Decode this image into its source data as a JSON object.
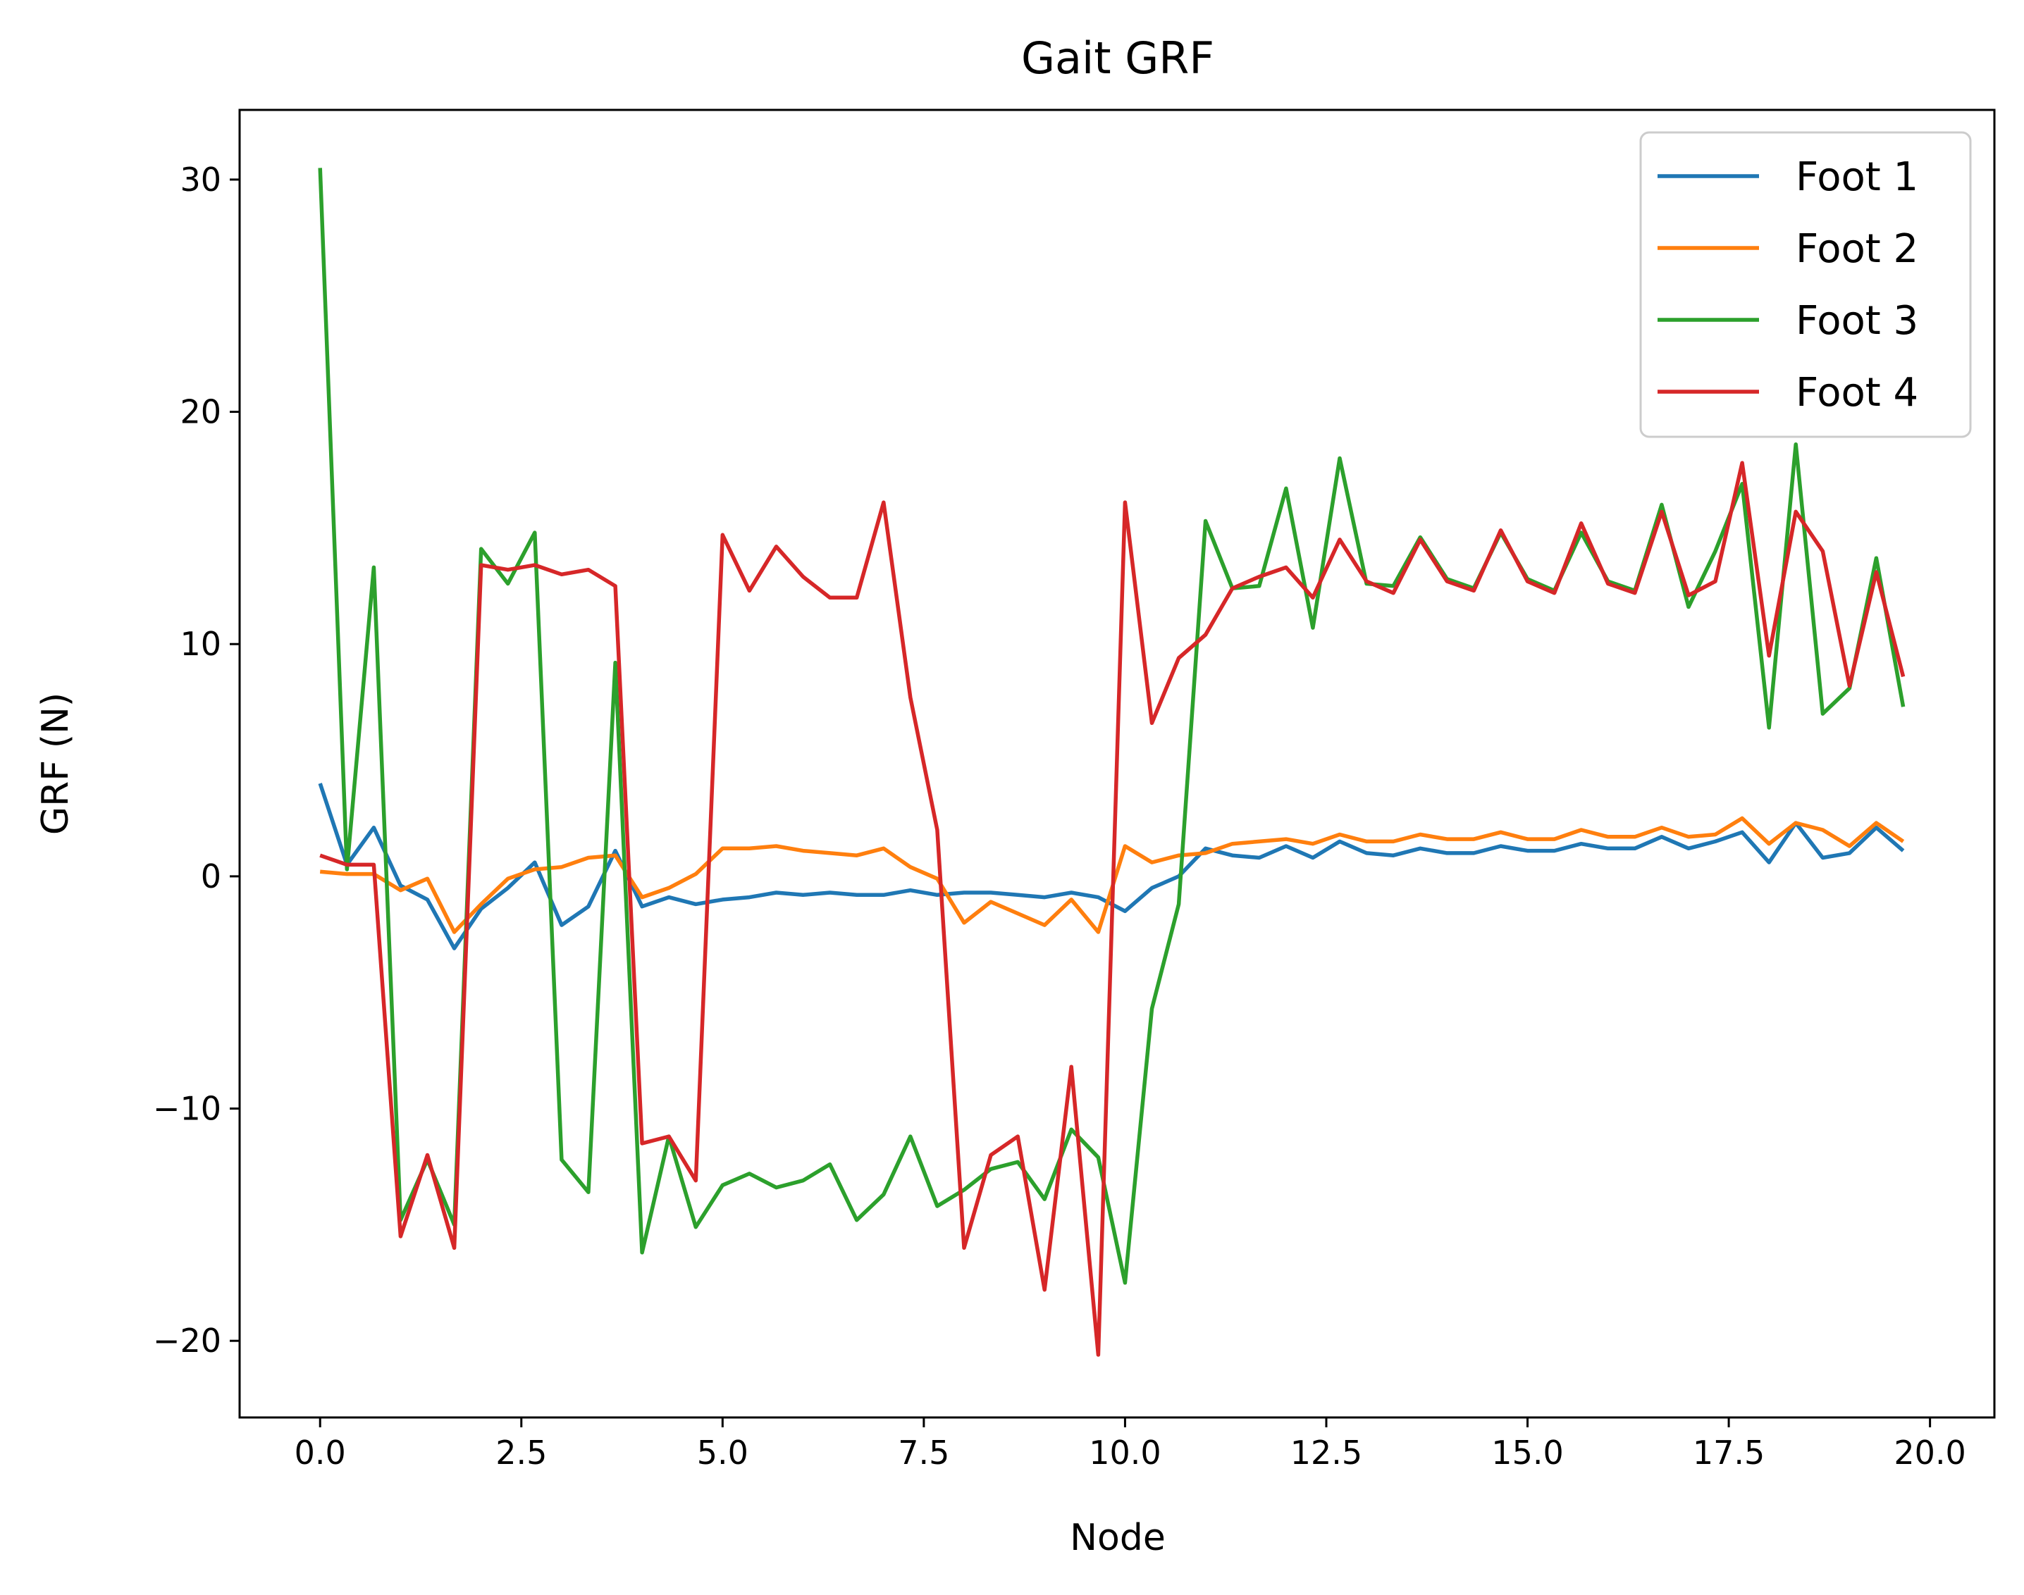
{
  "chart_data": {
    "type": "line",
    "title": "Gait GRF",
    "xlabel": "Node",
    "ylabel": "GRF (N)",
    "xlim": [
      -1.0,
      20.8
    ],
    "ylim": [
      -23.3,
      33
    ],
    "xticks": [
      0.0,
      2.5,
      5.0,
      7.5,
      10.0,
      12.5,
      15.0,
      17.5,
      20.0
    ],
    "xtick_labels": [
      "0.0",
      "2.5",
      "5.0",
      "7.5",
      "10.0",
      "12.5",
      "15.0",
      "17.5",
      "20.0"
    ],
    "yticks": [
      -20,
      -10,
      0,
      10,
      20,
      30
    ],
    "ytick_labels": [
      "−20",
      "−10",
      "0",
      "10",
      "20",
      "30"
    ],
    "grid": false,
    "legend_position": "top-right",
    "x": [
      0.0,
      0.333,
      0.667,
      1.0,
      1.333,
      1.667,
      2.0,
      2.333,
      2.667,
      3.0,
      3.333,
      3.667,
      4.0,
      4.333,
      4.667,
      5.0,
      5.333,
      5.667,
      6.0,
      6.333,
      6.667,
      7.0,
      7.333,
      7.667,
      8.0,
      8.333,
      8.667,
      9.0,
      9.333,
      9.667,
      10.0,
      10.333,
      10.667,
      11.0,
      11.333,
      11.667,
      12.0,
      12.333,
      12.667,
      13.0,
      13.333,
      13.667,
      14.0,
      14.333,
      14.667,
      15.0,
      15.333,
      15.667,
      16.0,
      16.333,
      16.667,
      17.0,
      17.333,
      17.667,
      18.0,
      18.333,
      18.667,
      19.0,
      19.333,
      19.667
    ],
    "series": [
      {
        "name": "Foot 1",
        "color": "#1f77b4",
        "values": [
          4.0,
          0.5,
          2.1,
          -0.4,
          -1.0,
          -3.1,
          -1.4,
          -0.5,
          0.6,
          -2.1,
          -1.3,
          1.1,
          -1.3,
          -0.9,
          -1.2,
          -1.0,
          -0.9,
          -0.7,
          -0.8,
          -0.7,
          -0.8,
          -0.8,
          -0.6,
          -0.8,
          -0.7,
          -0.7,
          -0.8,
          -0.9,
          -0.7,
          -0.9,
          -1.5,
          -0.5,
          0.0,
          1.2,
          0.9,
          0.8,
          1.3,
          0.8,
          1.5,
          1.0,
          0.9,
          1.2,
          1.0,
          1.0,
          1.3,
          1.1,
          1.1,
          1.4,
          1.2,
          1.2,
          1.7,
          1.2,
          1.5,
          1.9,
          0.6,
          2.3,
          0.8,
          1.0,
          2.1,
          1.1
        ]
      },
      {
        "name": "Foot 2",
        "color": "#ff7f0e",
        "values": [
          0.2,
          0.1,
          0.1,
          -0.6,
          -0.1,
          -2.4,
          -1.2,
          -0.1,
          0.3,
          0.4,
          0.8,
          0.9,
          -0.9,
          -0.5,
          0.1,
          1.2,
          1.2,
          1.3,
          1.1,
          1.0,
          0.9,
          1.2,
          0.4,
          -0.1,
          -2.0,
          -1.1,
          -1.6,
          -2.1,
          -1.0,
          -2.4,
          1.3,
          0.6,
          0.9,
          1.0,
          1.4,
          1.5,
          1.6,
          1.4,
          1.8,
          1.5,
          1.5,
          1.8,
          1.6,
          1.6,
          1.9,
          1.6,
          1.6,
          2.0,
          1.7,
          1.7,
          2.1,
          1.7,
          1.8,
          2.5,
          1.4,
          2.3,
          2.0,
          1.3,
          2.3,
          1.5
        ]
      },
      {
        "name": "Foot 3",
        "color": "#2ca02c",
        "values": [
          30.5,
          0.3,
          13.3,
          -14.8,
          -12.2,
          -15.0,
          14.1,
          12.6,
          14.8,
          -12.2,
          -13.6,
          9.2,
          -16.2,
          -11.2,
          -15.1,
          -13.3,
          -12.8,
          -13.4,
          -13.1,
          -12.4,
          -14.8,
          -13.7,
          -11.2,
          -14.2,
          -13.5,
          -12.6,
          -12.3,
          -13.9,
          -10.9,
          -12.1,
          -17.5,
          -5.7,
          -1.2,
          15.3,
          12.4,
          12.5,
          16.7,
          10.7,
          18.0,
          12.6,
          12.5,
          14.6,
          12.8,
          12.4,
          14.8,
          12.8,
          12.3,
          14.8,
          12.7,
          12.3,
          16.0,
          11.6,
          14.0,
          16.9,
          6.4,
          18.6,
          7.0,
          8.1,
          13.7,
          7.3
        ]
      },
      {
        "name": "Foot 4",
        "color": "#d62728",
        "values": [
          0.9,
          0.5,
          0.5,
          -15.5,
          -12.0,
          -16.0,
          13.4,
          13.2,
          13.4,
          13.0,
          13.2,
          12.5,
          -11.5,
          -11.2,
          -13.1,
          14.7,
          12.3,
          14.2,
          12.9,
          12.0,
          12.0,
          16.1,
          7.7,
          2.0,
          -16.0,
          -12.0,
          -11.2,
          -17.8,
          -8.2,
          -20.6,
          16.1,
          6.6,
          9.4,
          10.4,
          12.4,
          12.9,
          13.3,
          12.0,
          14.5,
          12.7,
          12.2,
          14.5,
          12.7,
          12.3,
          14.9,
          12.7,
          12.2,
          15.2,
          12.6,
          12.2,
          15.7,
          12.1,
          12.7,
          17.8,
          9.5,
          15.7,
          14.0,
          8.2,
          13.1,
          8.6
        ]
      }
    ]
  }
}
